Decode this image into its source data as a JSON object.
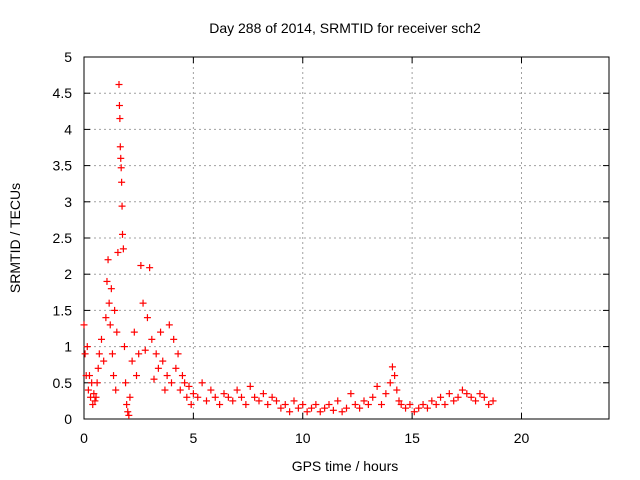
{
  "chart_data": {
    "type": "scatter",
    "title": "Day 288 of 2014, SRMTID for receiver sch2",
    "xlabel": "GPS time / hours",
    "ylabel": "SRMTID / TECUs",
    "xlim": [
      0,
      24
    ],
    "ylim": [
      0,
      5
    ],
    "xticks": [
      0,
      5,
      10,
      15,
      20
    ],
    "xtick_labels": [
      "0",
      "5",
      "10",
      "15",
      "20"
    ],
    "yticks": [
      0,
      0.5,
      1,
      1.5,
      2,
      2.5,
      3,
      3.5,
      4,
      4.5,
      5
    ],
    "ytick_labels": [
      "0",
      "0.5",
      "1",
      "1.5",
      "2",
      "2.5",
      "3",
      "3.5",
      "4",
      "4.5",
      "5"
    ],
    "grid": true,
    "marker": "+",
    "series": [
      {
        "name": "SRMTID",
        "color": "#ff0000",
        "x": [
          0.0,
          0.05,
          0.1,
          0.15,
          0.2,
          0.25,
          0.3,
          0.35,
          0.4,
          0.45,
          0.5,
          0.55,
          0.6,
          0.65,
          0.7,
          0.8,
          0.9,
          1.0,
          1.05,
          1.1,
          1.15,
          1.2,
          1.25,
          1.3,
          1.35,
          1.4,
          1.45,
          1.5,
          1.55,
          1.6,
          1.62,
          1.64,
          1.66,
          1.68,
          1.7,
          1.72,
          1.74,
          1.76,
          1.8,
          1.85,
          1.9,
          1.95,
          2.0,
          2.05,
          2.1,
          2.2,
          2.3,
          2.4,
          2.5,
          2.6,
          2.7,
          2.8,
          2.9,
          3.0,
          3.1,
          3.2,
          3.3,
          3.4,
          3.5,
          3.6,
          3.7,
          3.8,
          3.9,
          4.0,
          4.1,
          4.2,
          4.3,
          4.4,
          4.5,
          4.6,
          4.7,
          4.8,
          4.9,
          5.0,
          5.2,
          5.4,
          5.6,
          5.8,
          6.0,
          6.2,
          6.4,
          6.6,
          6.8,
          7.0,
          7.2,
          7.4,
          7.6,
          7.8,
          8.0,
          8.2,
          8.4,
          8.6,
          8.8,
          9.0,
          9.2,
          9.4,
          9.6,
          9.8,
          10.0,
          10.2,
          10.4,
          10.6,
          10.8,
          11.0,
          11.2,
          11.4,
          11.6,
          11.8,
          12.0,
          12.2,
          12.4,
          12.6,
          12.8,
          13.0,
          13.2,
          13.4,
          13.6,
          13.8,
          14.0,
          14.1,
          14.2,
          14.3,
          14.4,
          14.5,
          14.7,
          14.9,
          15.1,
          15.3,
          15.5,
          15.7,
          15.9,
          16.1,
          16.3,
          16.5,
          16.7,
          16.9,
          17.1,
          17.3,
          17.5,
          17.7,
          17.9,
          18.1,
          18.3,
          18.5,
          18.7
        ],
        "y": [
          1.3,
          0.9,
          0.6,
          1.0,
          0.4,
          0.6,
          0.3,
          0.5,
          0.2,
          0.35,
          0.25,
          0.3,
          0.5,
          0.7,
          0.9,
          1.1,
          0.8,
          1.4,
          1.9,
          2.2,
          1.6,
          1.3,
          1.8,
          0.9,
          0.6,
          1.5,
          0.4,
          1.2,
          2.3,
          4.62,
          4.33,
          4.15,
          3.76,
          3.6,
          3.47,
          3.27,
          2.94,
          2.55,
          2.35,
          1.0,
          0.5,
          0.2,
          0.1,
          0.05,
          0.3,
          0.8,
          1.2,
          0.6,
          0.9,
          2.12,
          1.6,
          0.95,
          1.4,
          2.09,
          1.1,
          0.55,
          0.9,
          0.7,
          1.2,
          0.8,
          0.4,
          0.6,
          1.3,
          0.5,
          1.1,
          0.7,
          0.9,
          0.4,
          0.6,
          0.5,
          0.3,
          0.45,
          0.2,
          0.35,
          0.3,
          0.5,
          0.25,
          0.4,
          0.3,
          0.2,
          0.35,
          0.3,
          0.25,
          0.4,
          0.3,
          0.2,
          0.45,
          0.3,
          0.25,
          0.35,
          0.2,
          0.3,
          0.25,
          0.15,
          0.2,
          0.1,
          0.25,
          0.15,
          0.2,
          0.1,
          0.15,
          0.2,
          0.1,
          0.15,
          0.2,
          0.12,
          0.25,
          0.1,
          0.15,
          0.35,
          0.2,
          0.15,
          0.25,
          0.2,
          0.3,
          0.45,
          0.2,
          0.35,
          0.5,
          0.72,
          0.6,
          0.4,
          0.25,
          0.2,
          0.15,
          0.2,
          0.1,
          0.15,
          0.2,
          0.15,
          0.25,
          0.2,
          0.3,
          0.2,
          0.35,
          0.25,
          0.3,
          0.4,
          0.35,
          0.3,
          0.25,
          0.35,
          0.3,
          0.2,
          0.25
        ]
      }
    ]
  }
}
